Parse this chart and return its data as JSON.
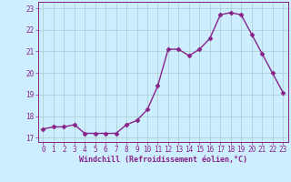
{
  "x": [
    0,
    1,
    2,
    3,
    4,
    5,
    6,
    7,
    8,
    9,
    10,
    11,
    12,
    13,
    14,
    15,
    16,
    17,
    18,
    19,
    20,
    21,
    22,
    23
  ],
  "y": [
    17.4,
    17.5,
    17.5,
    17.6,
    17.2,
    17.2,
    17.2,
    17.2,
    17.6,
    17.8,
    18.3,
    19.4,
    21.1,
    21.1,
    20.8,
    21.1,
    21.6,
    22.7,
    22.8,
    22.7,
    21.8,
    20.9,
    20.0,
    19.1
  ],
  "line_color": "#882288",
  "marker": "D",
  "markersize": 2.5,
  "linewidth": 1.0,
  "xlim": [
    -0.5,
    23.5
  ],
  "ylim": [
    16.8,
    23.3
  ],
  "yticks": [
    17,
    18,
    19,
    20,
    21,
    22,
    23
  ],
  "xticks": [
    0,
    1,
    2,
    3,
    4,
    5,
    6,
    7,
    8,
    9,
    10,
    11,
    12,
    13,
    14,
    15,
    16,
    17,
    18,
    19,
    20,
    21,
    22,
    23
  ],
  "xlabel": "Windchill (Refroidissement éolien,°C)",
  "bg_color": "#cceeff",
  "grid_color": "#aacccc",
  "tick_fontsize": 5.5,
  "label_fontsize": 6.0
}
